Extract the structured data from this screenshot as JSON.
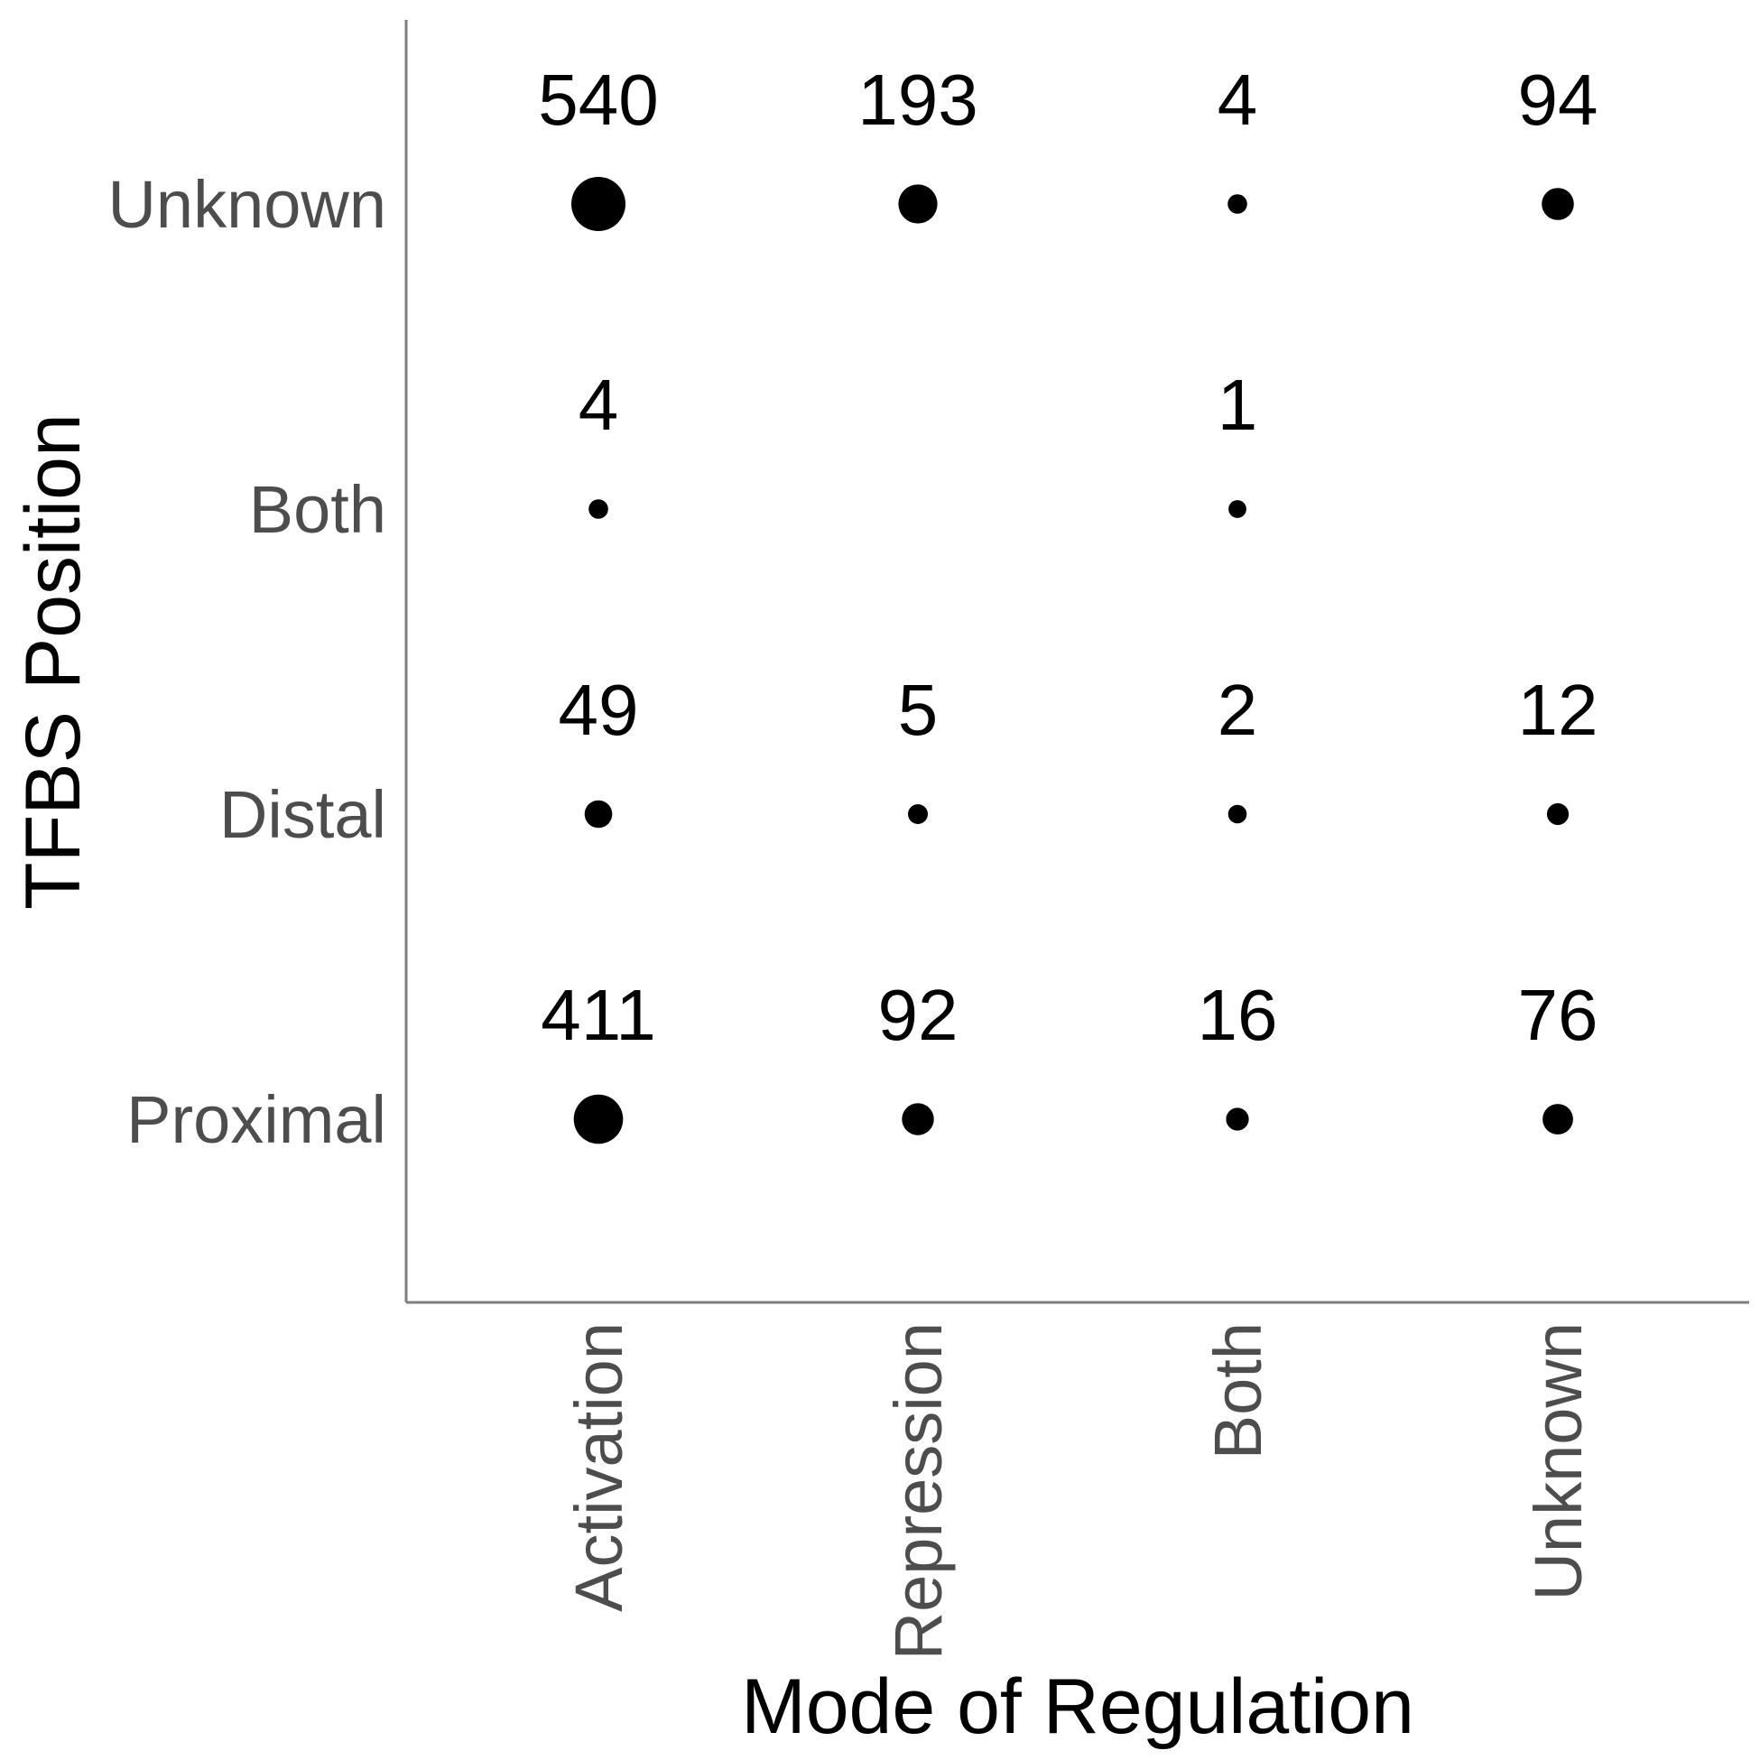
{
  "chart_data": {
    "type": "scatter",
    "title": "",
    "xlabel": "Mode of Regulation",
    "ylabel": "TFBS Position",
    "x_categories": [
      "Activation",
      "Repression",
      "Both",
      "Unknown"
    ],
    "y_categories": [
      "Proximal",
      "Distal",
      "Both",
      "Unknown"
    ],
    "points": [
      {
        "x": "Activation",
        "y": "Unknown",
        "count": 540
      },
      {
        "x": "Repression",
        "y": "Unknown",
        "count": 193
      },
      {
        "x": "Both",
        "y": "Unknown",
        "count": 4
      },
      {
        "x": "Unknown",
        "y": "Unknown",
        "count": 94
      },
      {
        "x": "Activation",
        "y": "Both",
        "count": 4
      },
      {
        "x": "Both",
        "y": "Both",
        "count": 1
      },
      {
        "x": "Activation",
        "y": "Distal",
        "count": 49
      },
      {
        "x": "Repression",
        "y": "Distal",
        "count": 5
      },
      {
        "x": "Both",
        "y": "Distal",
        "count": 2
      },
      {
        "x": "Unknown",
        "y": "Distal",
        "count": 12
      },
      {
        "x": "Activation",
        "y": "Proximal",
        "count": 411
      },
      {
        "x": "Repression",
        "y": "Proximal",
        "count": 92
      },
      {
        "x": "Both",
        "y": "Proximal",
        "count": 16
      },
      {
        "x": "Unknown",
        "y": "Proximal",
        "count": 76
      }
    ],
    "grid": false,
    "legend": "none",
    "color": "#000000"
  }
}
